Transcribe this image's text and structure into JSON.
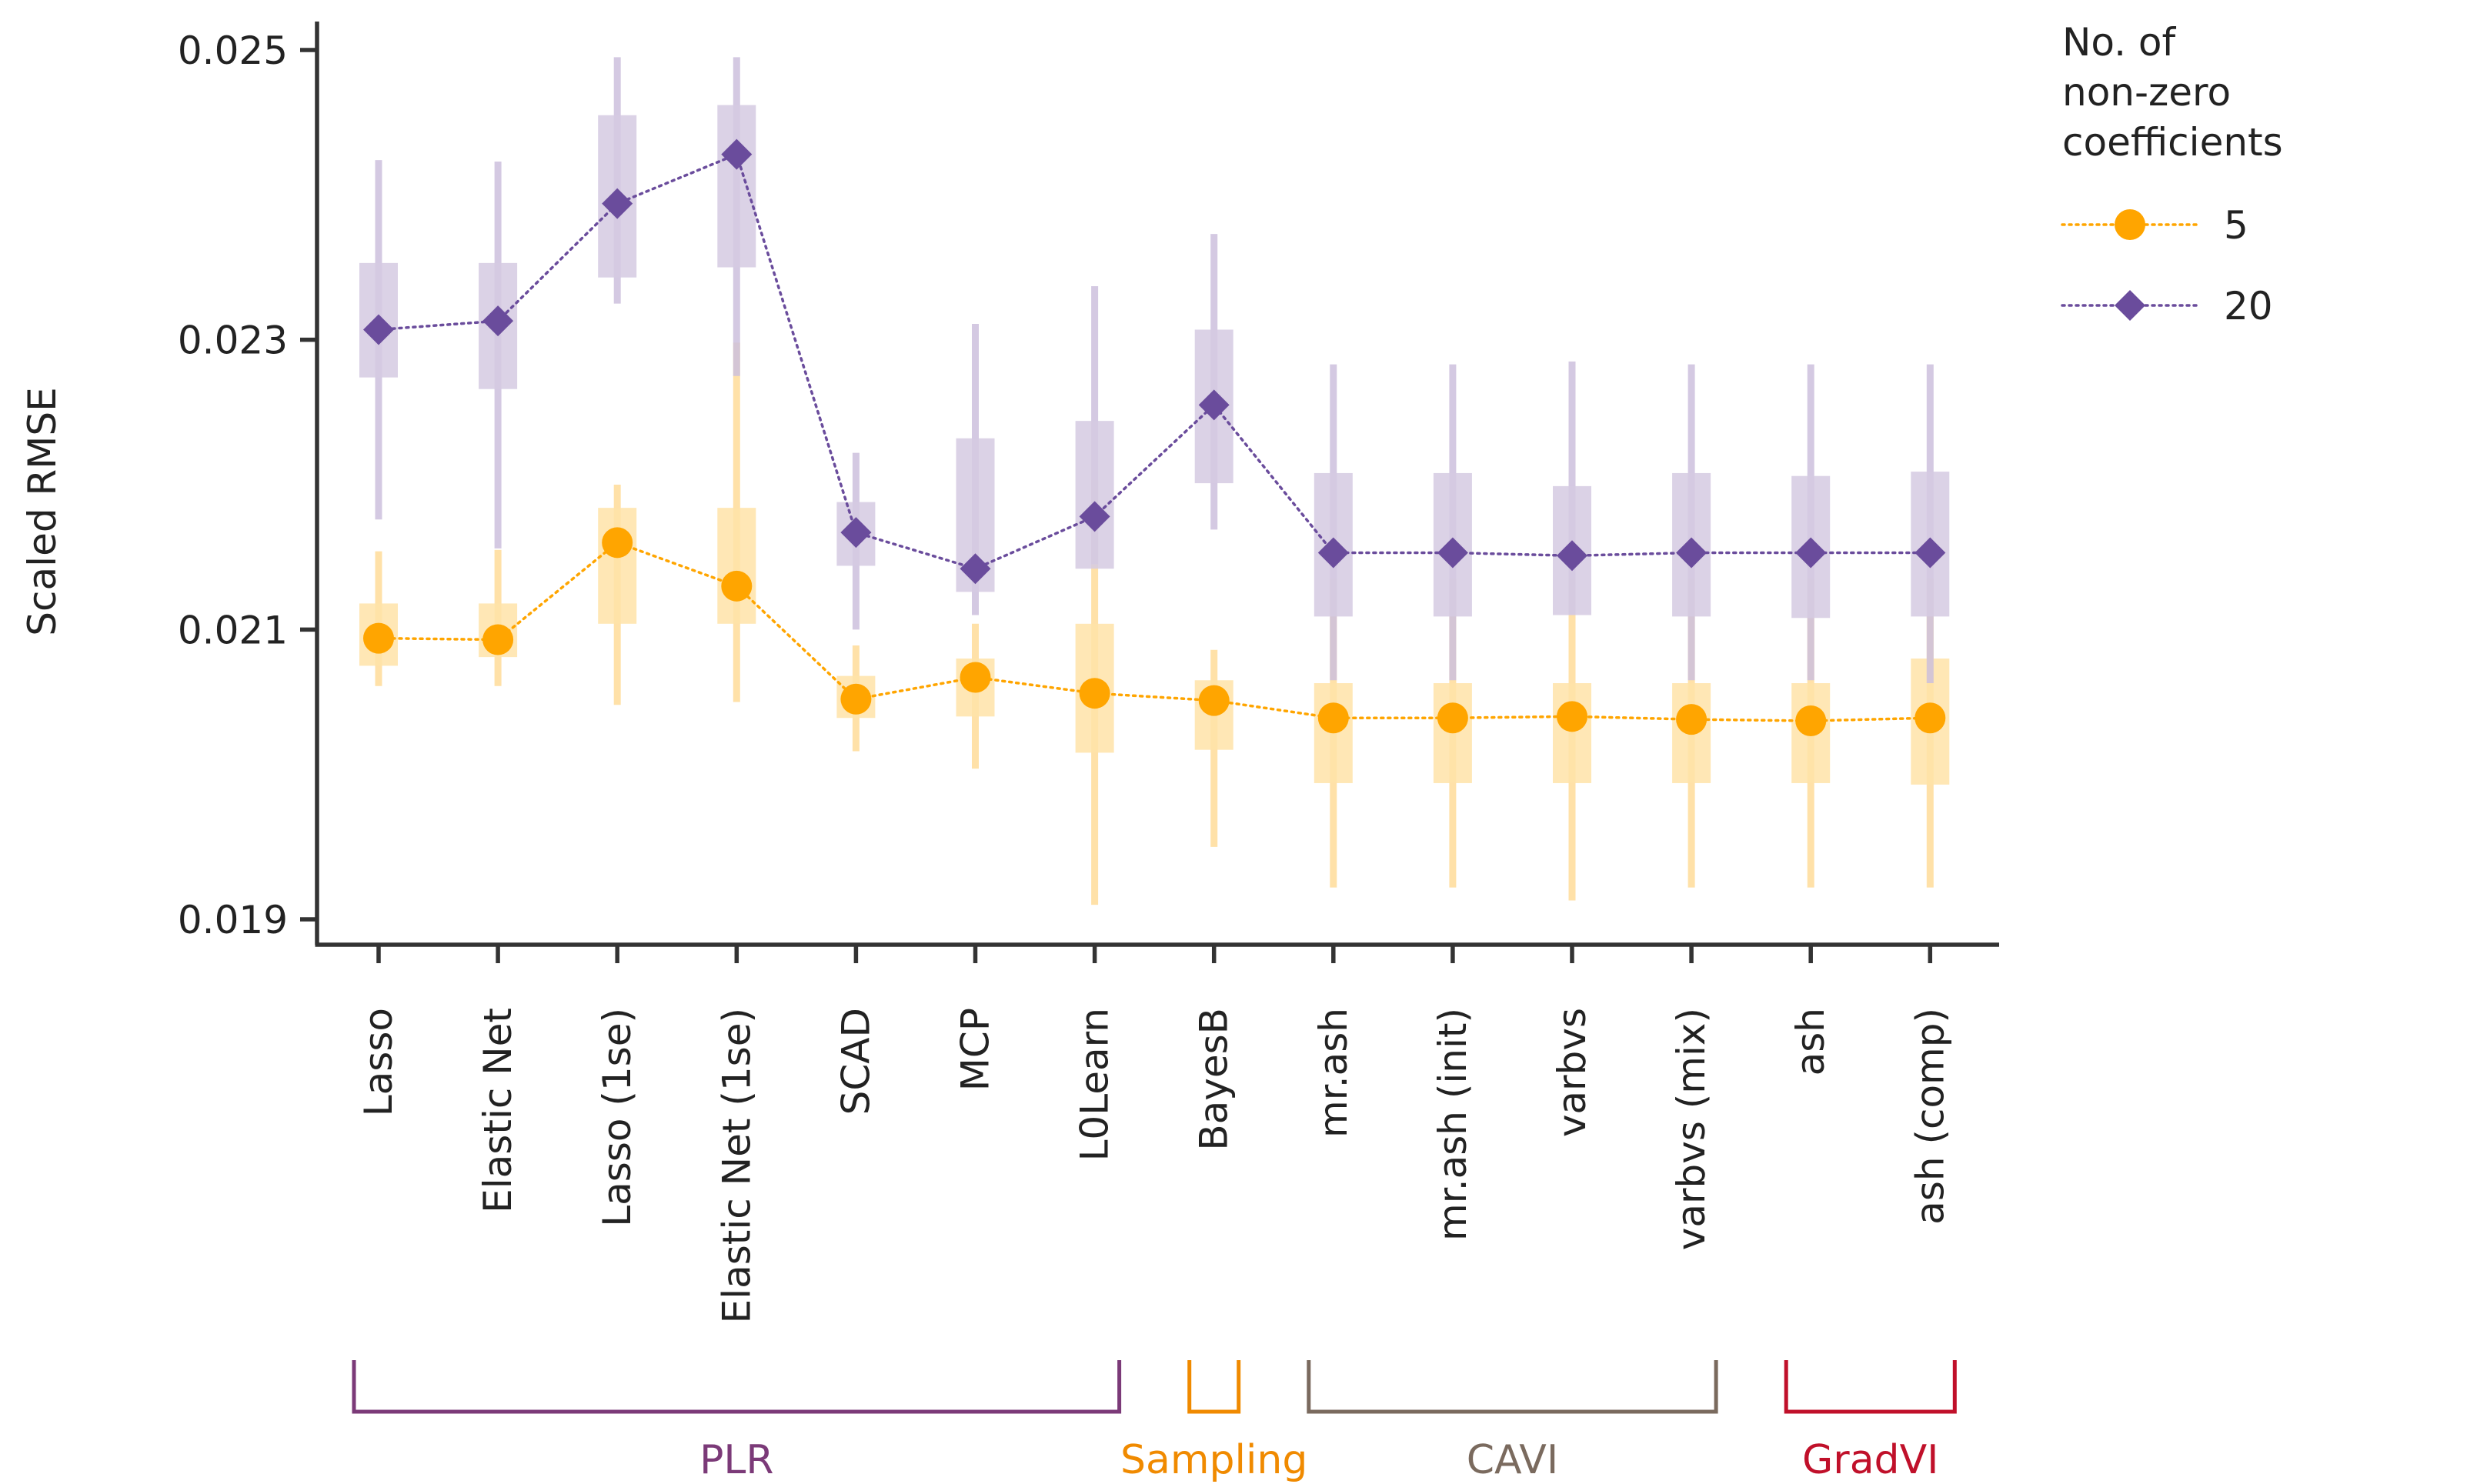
{
  "chart_data": {
    "type": "line",
    "ylabel": "Scaled RMSE",
    "xlabel": "",
    "ylim": [
      0.0188,
      0.0252
    ],
    "yticks": [
      0.019,
      0.021,
      0.023,
      0.025
    ],
    "ytick_labels": [
      "0.019",
      "0.021",
      "0.023",
      "0.025"
    ],
    "categories": [
      "Lasso",
      "Elastic Net",
      "Lasso (1se)",
      "Elastic Net (1se)",
      "SCAD",
      "MCP",
      "L0Learn",
      "BayesB",
      "mr.ash",
      "mr.ash (init)",
      "varbvs",
      "varbvs (mix)",
      "ash",
      "ash (comp)"
    ],
    "legend": {
      "title": "No. of\nnon-zero\ncoefficients",
      "title_lines": [
        "No. of",
        "non-zero",
        "coefficients"
      ],
      "placement": "top-right outside"
    },
    "series": [
      {
        "name": "5",
        "color": "#FFA500",
        "box_color": "#FFE3A8",
        "whisker_color": "#FFDC99",
        "marker": "circle",
        "values": [
          0.02094,
          0.02093,
          0.0216,
          0.0213,
          0.02052,
          0.02067,
          0.02056,
          0.02051,
          0.02039,
          0.02039,
          0.0204,
          0.02038,
          0.02037,
          0.02039
        ],
        "q1": [
          0.02075,
          0.02081,
          0.02104,
          0.02104,
          0.02039,
          0.0204,
          0.02015,
          0.02017,
          0.01994,
          0.01994,
          0.01994,
          0.01994,
          0.01994,
          0.01993
        ],
        "q3": [
          0.02118,
          0.02118,
          0.02184,
          0.02184,
          0.02068,
          0.0208,
          0.02104,
          0.02065,
          0.02063,
          0.02063,
          0.02063,
          0.02063,
          0.02063,
          0.0208
        ],
        "whisker_low": [
          0.02061,
          0.02061,
          0.02048,
          0.0205,
          0.02016,
          0.02004,
          0.0191,
          0.0195,
          0.01922,
          0.01922,
          0.01913,
          0.01922,
          0.01922,
          0.01922
        ],
        "whisker_high": [
          0.02154,
          0.02155,
          0.022,
          0.02298,
          0.02089,
          0.02104,
          0.02203,
          0.02086,
          0.02135,
          0.02135,
          0.02135,
          0.02135,
          0.02135,
          0.02135
        ]
      },
      {
        "name": "20",
        "color": "#6A4C9C",
        "box_color": "#D5CAE2",
        "whisker_color": "#CDBFDD",
        "marker": "diamond",
        "values": [
          0.02307,
          0.02313,
          0.02394,
          0.02428,
          0.02167,
          0.02142,
          0.02178,
          0.02255,
          0.02153,
          0.02153,
          0.02151,
          0.02153,
          0.02153,
          0.02153
        ],
        "q1": [
          0.02274,
          0.02266,
          0.02343,
          0.0235,
          0.02144,
          0.02126,
          0.02142,
          0.02201,
          0.02109,
          0.02109,
          0.0211,
          0.02109,
          0.02108,
          0.02109
        ],
        "q3": [
          0.02353,
          0.02353,
          0.02455,
          0.02462,
          0.02188,
          0.02232,
          0.02244,
          0.02307,
          0.02208,
          0.02208,
          0.02199,
          0.02208,
          0.02206,
          0.02209
        ],
        "whisker_low": [
          0.02176,
          0.02156,
          0.02325,
          0.02275,
          0.021,
          0.0211,
          0.02145,
          0.02169,
          0.02065,
          0.02065,
          0.0211,
          0.02065,
          0.02065,
          0.02063
        ],
        "whisker_high": [
          0.02424,
          0.02423,
          0.02495,
          0.02495,
          0.02222,
          0.02311,
          0.02337,
          0.02373,
          0.02283,
          0.02283,
          0.02285,
          0.02283,
          0.02283,
          0.02283
        ]
      }
    ],
    "groups": [
      {
        "label": "PLR",
        "color": "#7B3A78",
        "from": 0,
        "to": 6
      },
      {
        "label": "Sampling",
        "color": "#F08A00",
        "from": 7,
        "to": 7
      },
      {
        "label": "CAVI",
        "color": "#7A6A5E",
        "from": 8,
        "to": 11
      },
      {
        "label": "GradVI",
        "color": "#C0102A",
        "from": 12,
        "to": 13
      }
    ]
  }
}
